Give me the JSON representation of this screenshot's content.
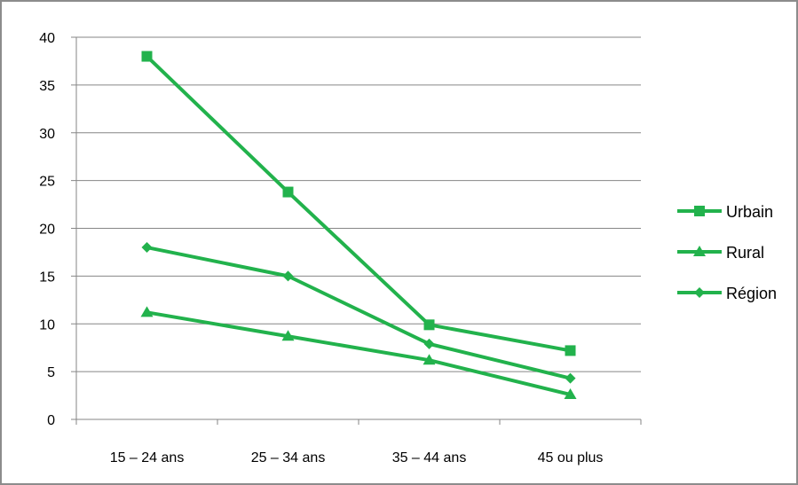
{
  "chart_data": {
    "type": "line",
    "title": "",
    "xlabel": "",
    "ylabel": "",
    "categories": [
      "15 – 24 ans",
      "25 – 34 ans",
      "35 – 44 ans",
      "45 ou plus"
    ],
    "ylim": [
      0,
      40
    ],
    "yticks": [
      "0",
      "5",
      "10",
      "15",
      "20",
      "25",
      "30",
      "35",
      "40"
    ],
    "grid": true,
    "legend_position": "right",
    "series": [
      {
        "name": "Urbain",
        "values": [
          38,
          23.8,
          9.9,
          7.2
        ],
        "marker": "square",
        "color": "#22b24c"
      },
      {
        "name": "Rural",
        "values": [
          11.2,
          8.7,
          6.2,
          2.6
        ],
        "marker": "triangle",
        "color": "#22b24c"
      },
      {
        "name": "Région",
        "values": [
          18,
          15,
          7.9,
          4.3
        ],
        "marker": "diamond",
        "color": "#22b24c"
      }
    ]
  }
}
